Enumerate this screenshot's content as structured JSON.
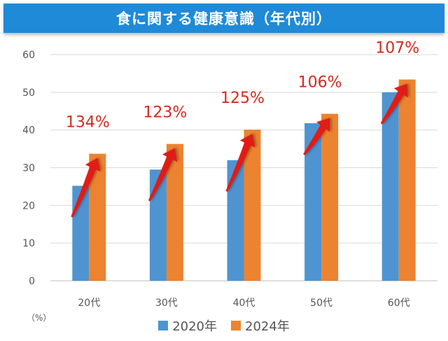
{
  "title": "食に関する健康意識（年代別）",
  "unit_label": "（%）",
  "colors": {
    "series_2020": "#4f94d0",
    "series_2024": "#ec8330",
    "arrow": "#e01e12",
    "grid": "#d9d9d9"
  },
  "chart_data": {
    "type": "bar",
    "title": "食に関する健康意識（年代別）",
    "ylabel": "（%）",
    "ylim": [
      0,
      60
    ],
    "yticks": [
      0,
      10,
      20,
      30,
      40,
      50,
      60
    ],
    "categories": [
      "20代",
      "30代",
      "40代",
      "50代",
      "60代"
    ],
    "series": [
      {
        "name": "2020年",
        "values": [
          25.2,
          29.5,
          32.0,
          41.8,
          50.0
        ]
      },
      {
        "name": "2024年",
        "values": [
          33.7,
          36.3,
          40.1,
          44.3,
          53.4
        ]
      }
    ],
    "annotations": [
      "134%",
      "123%",
      "125%",
      "106%",
      "107%"
    ],
    "grid": true,
    "legend_position": "bottom"
  }
}
